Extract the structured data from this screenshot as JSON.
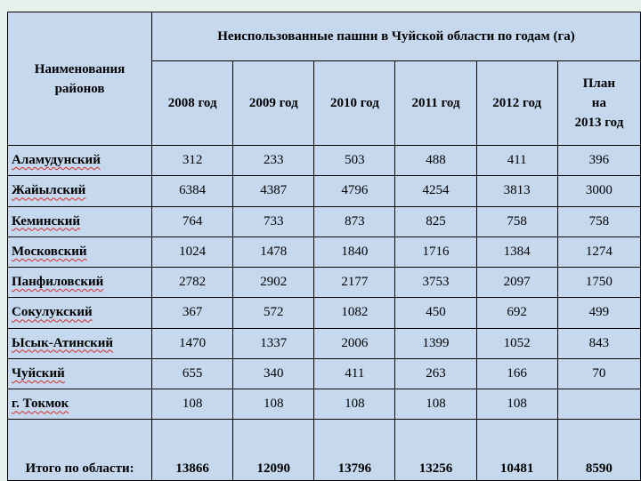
{
  "table": {
    "title": "Неиспользованные пашни в Чуйской области по годам (га)",
    "district_header": "Наименования районов",
    "year_headers": [
      "2008 год",
      "2009 год",
      "2010 год",
      "2011 год",
      "2012 год"
    ],
    "plan_header": "План\nна\n2013 год",
    "rows": [
      {
        "name": "Аламудунский",
        "values": [
          "312",
          "233",
          "503",
          "488",
          "411",
          "396"
        ]
      },
      {
        "name": "Жайылский",
        "values": [
          "6384",
          "4387",
          "4796",
          "4254",
          "3813",
          "3000"
        ]
      },
      {
        "name": "Кеминский",
        "values": [
          "764",
          "733",
          "873",
          "825",
          "758",
          "758"
        ]
      },
      {
        "name": "Московский",
        "values": [
          "1024",
          "1478",
          "1840",
          "1716",
          "1384",
          "1274"
        ]
      },
      {
        "name": "Панфиловский",
        "values": [
          "2782",
          "2902",
          "2177",
          "3753",
          "2097",
          "1750"
        ]
      },
      {
        "name": "Сокулукский",
        "values": [
          "367",
          "572",
          "1082",
          "450",
          "692",
          "499"
        ]
      },
      {
        "name": "Ысык-Атинский",
        "values": [
          "1470",
          "1337",
          "2006",
          "1399",
          "1052",
          "843"
        ]
      },
      {
        "name": "Чуйский",
        "values": [
          "655",
          "340",
          "411",
          "263",
          "166",
          "70"
        ]
      },
      {
        "name": "г. Токмок",
        "values": [
          "108",
          "108",
          "108",
          "108",
          "108",
          ""
        ]
      }
    ],
    "total": {
      "label": "Итого по области:",
      "values": [
        "13866",
        "12090",
        "13796",
        "13256",
        "10481",
        "8590"
      ]
    }
  }
}
